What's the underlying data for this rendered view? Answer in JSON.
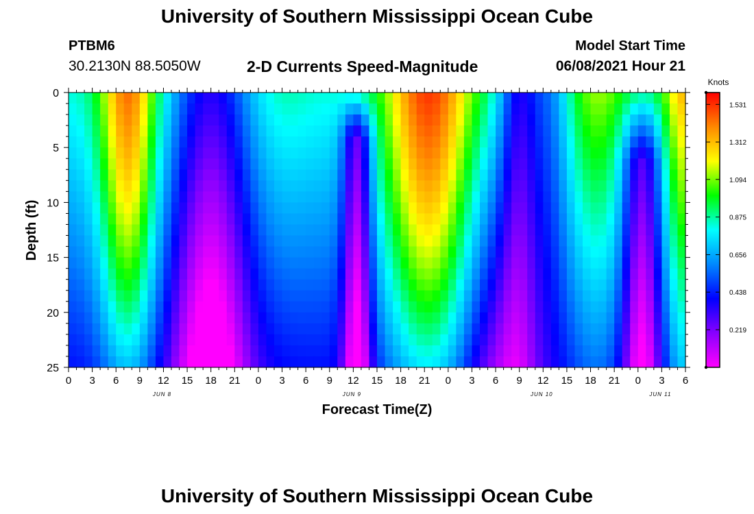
{
  "page": {
    "main_title": "University of Southern Mississippi Ocean Cube",
    "footer_title": "University of Southern Mississippi Ocean Cube",
    "station_id": "PTBM6",
    "station_coords": "30.2130N  88.5050W",
    "chart_title": "2-D Currents Speed-Magnitude",
    "model_start_label": "Model Start Time",
    "model_start_value": "06/08/2021 Hour 21"
  },
  "colors": {
    "scale": [
      "#ff00ff",
      "#8800ff",
      "#0000ff",
      "#0088ff",
      "#00ffff",
      "#00ff00",
      "#ffff00",
      "#ff8800",
      "#ff0000"
    ]
  },
  "chart_data": {
    "type": "heatmap",
    "title": "2-D Currents Speed-Magnitude",
    "xlabel": "Forecast Time(Z)",
    "ylabel": "Depth (ft)",
    "xlim": [
      0,
      78
    ],
    "ylim": [
      25,
      0
    ],
    "x_unit": "hours since first tick (0Z)",
    "x_tick_labels": [
      "0",
      "3",
      "6",
      "9",
      "12",
      "15",
      "18",
      "21",
      "0",
      "3",
      "6",
      "9",
      "12",
      "15",
      "18",
      "21",
      "0",
      "3",
      "6",
      "9",
      "12",
      "15",
      "18",
      "21",
      "0",
      "3",
      "6"
    ],
    "day_labels": [
      {
        "label": "JUN 8",
        "hour": 12
      },
      {
        "label": "JUN 9",
        "hour": 36
      },
      {
        "label": "JUN 10",
        "hour": 60
      },
      {
        "label": "JUN 11",
        "hour": 75
      }
    ],
    "y_ticks": [
      0,
      5,
      10,
      15,
      20,
      25
    ],
    "colorbar": {
      "unit": "Knots",
      "min": 0.0,
      "max": 1.6,
      "tick_values": [
        0.219,
        0.438,
        0.656,
        0.875,
        1.094,
        1.312,
        1.531
      ]
    },
    "z_unit": "knots",
    "grid": "hourly x 1-ft cells",
    "x_cells": 78,
    "y_cells": 25,
    "value_range": [
      0.0,
      1.6
    ]
  }
}
